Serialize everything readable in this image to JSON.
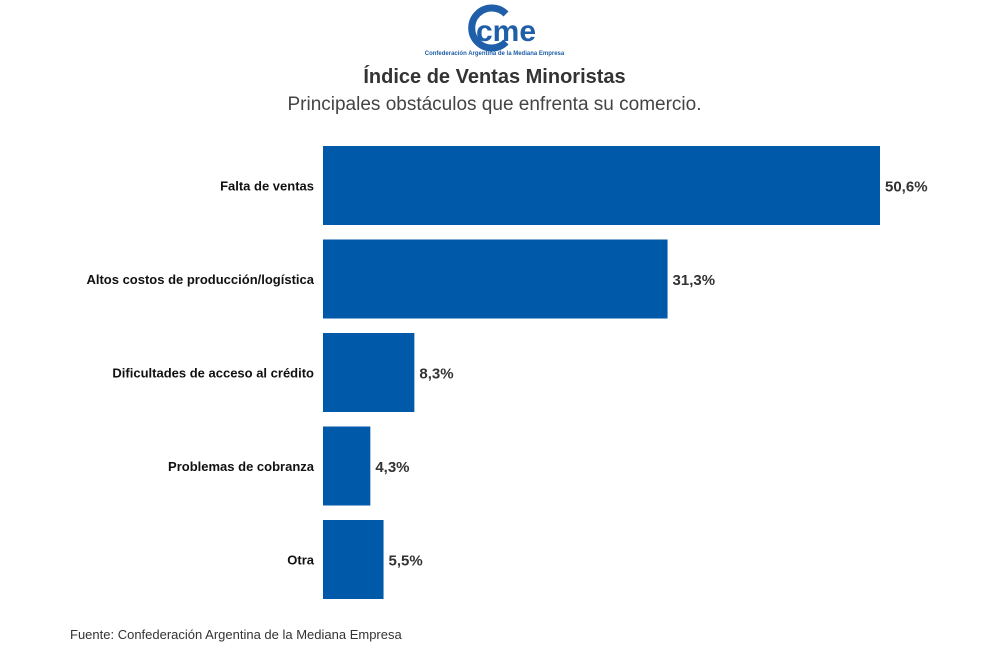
{
  "brand": {
    "logo_text": "cme",
    "logo_subtitle": "Confederación Argentina de la Mediana Empresa",
    "color": "#1f5ea8"
  },
  "chart_data": {
    "type": "bar",
    "orientation": "horizontal",
    "title": "Índice de Ventas Minoristas",
    "subtitle": "Principales obstáculos que enfrenta su comercio.",
    "categories": [
      "Falta de ventas",
      "Altos costos de producción/logística",
      "Dificultades de acceso al crédito",
      "Problemas de cobranza",
      "Otra"
    ],
    "values": [
      50.6,
      31.3,
      8.3,
      4.3,
      5.5
    ],
    "value_labels": [
      "50,6%",
      "31,3%",
      "8,3%",
      "4,3%",
      "5,5%"
    ],
    "unit": "%",
    "bar_color": "#005aa9",
    "xlim": [
      0,
      50.6
    ],
    "grid": false,
    "legend": "none"
  },
  "footer": {
    "source": "Fuente: Confederación Argentina de la Mediana Empresa"
  }
}
